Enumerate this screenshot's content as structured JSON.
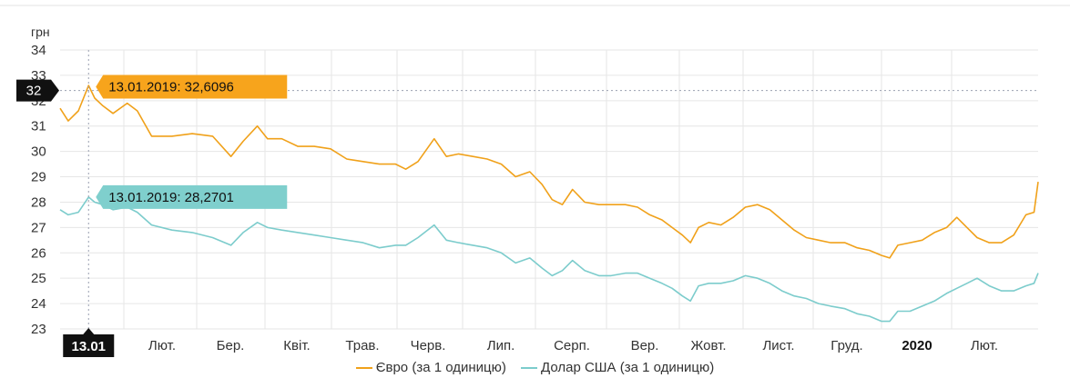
{
  "chart_data": {
    "type": "line",
    "y_unit": "грн",
    "ylim": [
      23,
      34
    ],
    "y_ticks": [
      23,
      24,
      25,
      26,
      27,
      28,
      29,
      30,
      31,
      32,
      33,
      34
    ],
    "x_tick_labels": [
      "13.01",
      "Лют.",
      "Бер.",
      "Квіт.",
      "Трав.",
      "Черв.",
      "Лип.",
      "Серп.",
      "Вер.",
      "Жовт.",
      "Лист.",
      "Груд.",
      "2020",
      "Лют."
    ],
    "grid": true,
    "crosshair": {
      "x_label": "13.01",
      "y_label": "32",
      "tooltips": [
        "13.01.2019: 32,6096",
        "13.01.2019: 28,2701"
      ]
    },
    "series": [
      {
        "name": "Євро (за 1 одиницю)",
        "color": "#f0a11a",
        "points": [
          [
            0,
            31.7
          ],
          [
            4,
            31.2
          ],
          [
            9,
            31.6
          ],
          [
            14,
            32.6
          ],
          [
            17,
            32.1
          ],
          [
            21,
            31.8
          ],
          [
            26,
            31.5
          ],
          [
            33,
            31.9
          ],
          [
            38,
            31.6
          ],
          [
            45,
            30.6
          ],
          [
            55,
            30.6
          ],
          [
            65,
            30.7
          ],
          [
            75,
            30.6
          ],
          [
            84,
            29.8
          ],
          [
            90,
            30.4
          ],
          [
            97,
            31.0
          ],
          [
            102,
            30.5
          ],
          [
            109,
            30.5
          ],
          [
            117,
            30.2
          ],
          [
            125,
            30.2
          ],
          [
            133,
            30.1
          ],
          [
            141,
            29.7
          ],
          [
            149,
            29.6
          ],
          [
            157,
            29.5
          ],
          [
            165,
            29.5
          ],
          [
            170,
            29.3
          ],
          [
            176,
            29.6
          ],
          [
            184,
            30.5
          ],
          [
            190,
            29.8
          ],
          [
            196,
            29.9
          ],
          [
            203,
            29.8
          ],
          [
            210,
            29.7
          ],
          [
            217,
            29.5
          ],
          [
            224,
            29.0
          ],
          [
            231,
            29.2
          ],
          [
            237,
            28.7
          ],
          [
            242,
            28.1
          ],
          [
            247,
            27.9
          ],
          [
            252,
            28.5
          ],
          [
            258,
            28.0
          ],
          [
            265,
            27.9
          ],
          [
            271,
            27.9
          ],
          [
            278,
            27.9
          ],
          [
            284,
            27.8
          ],
          [
            290,
            27.5
          ],
          [
            296,
            27.3
          ],
          [
            301,
            27.0
          ],
          [
            306,
            26.7
          ],
          [
            310,
            26.4
          ],
          [
            314,
            27.0
          ],
          [
            319,
            27.2
          ],
          [
            325,
            27.1
          ],
          [
            331,
            27.4
          ],
          [
            337,
            27.8
          ],
          [
            343,
            27.9
          ],
          [
            349,
            27.7
          ],
          [
            355,
            27.3
          ],
          [
            361,
            26.9
          ],
          [
            367,
            26.6
          ],
          [
            373,
            26.5
          ],
          [
            379,
            26.4
          ],
          [
            386,
            26.4
          ],
          [
            392,
            26.2
          ],
          [
            398,
            26.1
          ],
          [
            404,
            25.9
          ],
          [
            408,
            25.8
          ],
          [
            412,
            26.3
          ],
          [
            418,
            26.4
          ],
          [
            424,
            26.5
          ],
          [
            430,
            26.8
          ],
          [
            436,
            27.0
          ],
          [
            441,
            27.4
          ],
          [
            446,
            27.0
          ],
          [
            451,
            26.6
          ],
          [
            457,
            26.4
          ],
          [
            463,
            26.4
          ],
          [
            469,
            26.7
          ],
          [
            475,
            27.5
          ],
          [
            479,
            27.6
          ],
          [
            481,
            28.8
          ]
        ]
      },
      {
        "name": "Долар США (за 1 одиницю)",
        "color": "#7ccccc",
        "points": [
          [
            0,
            27.7
          ],
          [
            4,
            27.5
          ],
          [
            9,
            27.6
          ],
          [
            14,
            28.2
          ],
          [
            17,
            28.0
          ],
          [
            21,
            27.9
          ],
          [
            26,
            27.7
          ],
          [
            33,
            27.8
          ],
          [
            38,
            27.6
          ],
          [
            45,
            27.1
          ],
          [
            55,
            26.9
          ],
          [
            65,
            26.8
          ],
          [
            75,
            26.6
          ],
          [
            84,
            26.3
          ],
          [
            90,
            26.8
          ],
          [
            97,
            27.2
          ],
          [
            102,
            27.0
          ],
          [
            109,
            26.9
          ],
          [
            117,
            26.8
          ],
          [
            125,
            26.7
          ],
          [
            133,
            26.6
          ],
          [
            141,
            26.5
          ],
          [
            149,
            26.4
          ],
          [
            157,
            26.2
          ],
          [
            165,
            26.3
          ],
          [
            170,
            26.3
          ],
          [
            176,
            26.6
          ],
          [
            184,
            27.1
          ],
          [
            190,
            26.5
          ],
          [
            196,
            26.4
          ],
          [
            203,
            26.3
          ],
          [
            210,
            26.2
          ],
          [
            217,
            26.0
          ],
          [
            224,
            25.6
          ],
          [
            231,
            25.8
          ],
          [
            237,
            25.4
          ],
          [
            242,
            25.1
          ],
          [
            247,
            25.3
          ],
          [
            252,
            25.7
          ],
          [
            258,
            25.3
          ],
          [
            265,
            25.1
          ],
          [
            271,
            25.1
          ],
          [
            278,
            25.2
          ],
          [
            284,
            25.2
          ],
          [
            290,
            25.0
          ],
          [
            296,
            24.8
          ],
          [
            301,
            24.6
          ],
          [
            306,
            24.3
          ],
          [
            310,
            24.1
          ],
          [
            314,
            24.7
          ],
          [
            319,
            24.8
          ],
          [
            325,
            24.8
          ],
          [
            331,
            24.9
          ],
          [
            337,
            25.1
          ],
          [
            343,
            25.0
          ],
          [
            349,
            24.8
          ],
          [
            355,
            24.5
          ],
          [
            361,
            24.3
          ],
          [
            367,
            24.2
          ],
          [
            373,
            24.0
          ],
          [
            379,
            23.9
          ],
          [
            386,
            23.8
          ],
          [
            392,
            23.6
          ],
          [
            398,
            23.5
          ],
          [
            404,
            23.3
          ],
          [
            408,
            23.3
          ],
          [
            412,
            23.7
          ],
          [
            418,
            23.7
          ],
          [
            424,
            23.9
          ],
          [
            430,
            24.1
          ],
          [
            436,
            24.4
          ],
          [
            441,
            24.6
          ],
          [
            446,
            24.8
          ],
          [
            451,
            25.0
          ],
          [
            457,
            24.7
          ],
          [
            463,
            24.5
          ],
          [
            469,
            24.5
          ],
          [
            475,
            24.7
          ],
          [
            479,
            24.8
          ],
          [
            481,
            25.2
          ]
        ]
      }
    ],
    "legend_position": "bottom"
  }
}
